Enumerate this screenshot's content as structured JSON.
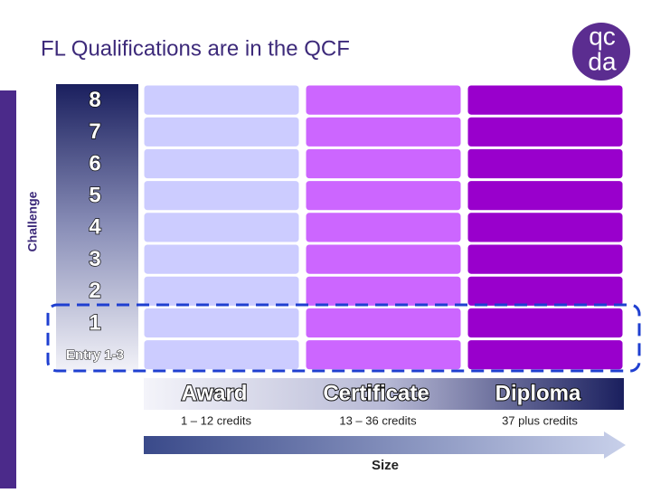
{
  "header": {
    "title": "FL Qualifications are in the QCF",
    "logo_top": "qc",
    "logo_bottom": "da"
  },
  "axis": {
    "y_label": "Challenge",
    "x_label": "Size"
  },
  "levels": [
    "8",
    "7",
    "6",
    "5",
    "4",
    "3",
    "2",
    "1",
    "Entry 1-3"
  ],
  "columns": [
    {
      "name": "Award",
      "credits": "1 – 12 credits"
    },
    {
      "name": "Certificate",
      "credits": "13 – 36 credits"
    },
    {
      "name": "Diploma",
      "credits": "37 plus credits"
    }
  ]
}
